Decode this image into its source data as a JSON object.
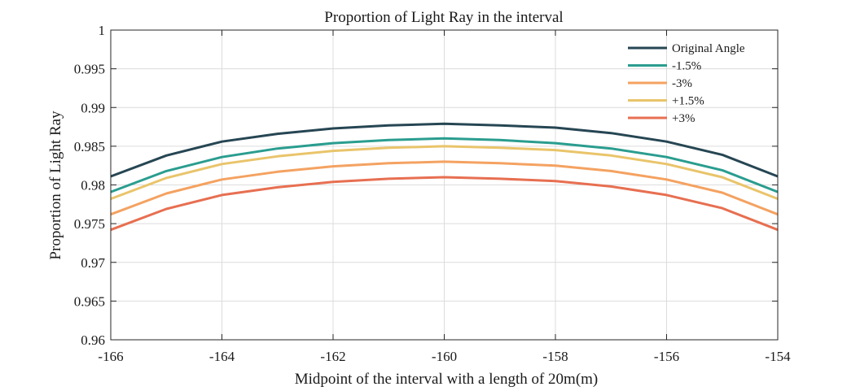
{
  "chart_data": {
    "type": "line",
    "title": "Proportion of Light Ray in the interval",
    "xlabel": "Midpoint of the interval with a length of 20m(m)",
    "ylabel": "Proportion of Light Ray",
    "xlim": [
      -166,
      -154
    ],
    "ylim": [
      0.96,
      1
    ],
    "xticks": [
      -166,
      -164,
      -162,
      -160,
      -158,
      -156,
      -154
    ],
    "xtick_labels": [
      "-166",
      "-164",
      "-162",
      "-160",
      "-158",
      "-156",
      "-154"
    ],
    "yticks": [
      0.96,
      0.965,
      0.97,
      0.975,
      0.98,
      0.985,
      0.99,
      0.995,
      1
    ],
    "ytick_labels": [
      "0.96",
      "0.965",
      "0.97",
      "0.975",
      "0.98",
      "0.985",
      "0.99",
      "0.995",
      "1"
    ],
    "grid": true,
    "legend_position": "top-right",
    "x": [
      -166,
      -165,
      -164,
      -163,
      -162,
      -161,
      -160,
      -159,
      -158,
      -157,
      -156,
      -155,
      -154
    ],
    "series": [
      {
        "name": "Original Angle",
        "color": "#264653",
        "values": [
          0.9811,
          0.9838,
          0.9856,
          0.9866,
          0.9873,
          0.9877,
          0.9879,
          0.9877,
          0.9874,
          0.9867,
          0.9856,
          0.9839,
          0.9811
        ]
      },
      {
        "name": "-1.5%",
        "color": "#2a9d8f",
        "values": [
          0.9791,
          0.9818,
          0.9836,
          0.9847,
          0.9854,
          0.9858,
          0.986,
          0.9858,
          0.9854,
          0.9847,
          0.9836,
          0.9819,
          0.9791
        ]
      },
      {
        "name": "-3%",
        "color": "#f4a261",
        "values": [
          0.9762,
          0.9789,
          0.9807,
          0.9817,
          0.9824,
          0.9828,
          0.983,
          0.9828,
          0.9825,
          0.9818,
          0.9807,
          0.979,
          0.9762
        ]
      },
      {
        "name": "+1.5%",
        "color": "#e9c46a",
        "values": [
          0.9782,
          0.9809,
          0.9827,
          0.9837,
          0.9844,
          0.9848,
          0.985,
          0.9848,
          0.9845,
          0.9838,
          0.9827,
          0.981,
          0.9782
        ]
      },
      {
        "name": "+3%",
        "color": "#e76f51",
        "values": [
          0.9742,
          0.9769,
          0.9787,
          0.9797,
          0.9804,
          0.9808,
          0.981,
          0.9808,
          0.9805,
          0.9798,
          0.9787,
          0.977,
          0.9742
        ]
      }
    ]
  }
}
